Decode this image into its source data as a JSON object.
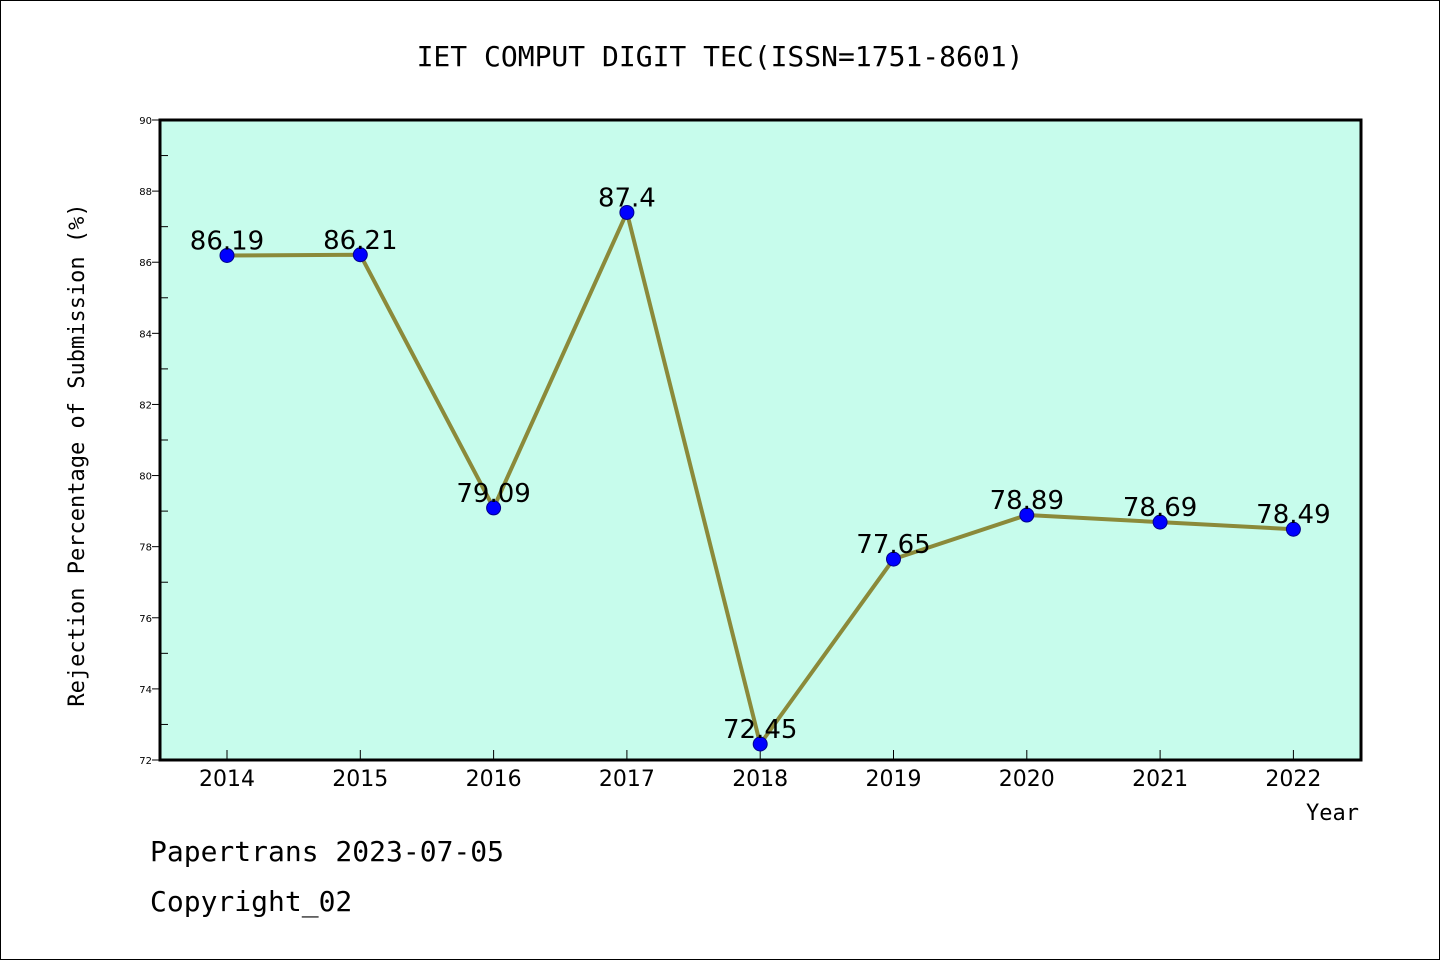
{
  "chart_data": {
    "type": "line",
    "title": "IET COMPUT DIGIT TEC(ISSN=1751-8601)",
    "xlabel": "Year",
    "ylabel": "Rejection Percentage of Submission (%)",
    "categories": [
      "2014",
      "2015",
      "2016",
      "2017",
      "2018",
      "2019",
      "2020",
      "2021",
      "2022"
    ],
    "series": [
      {
        "values": [
          86.19,
          86.21,
          79.09,
          87.4,
          72.45,
          77.65,
          78.89,
          78.69,
          78.49
        ]
      }
    ],
    "data_labels": [
      "86.19",
      "86.21",
      "79.09",
      "87.4",
      "72.45",
      "77.65",
      "78.89",
      "78.69",
      "78.49"
    ],
    "ylim": [
      72,
      90
    ],
    "y_ticks": [
      72,
      74,
      76,
      78,
      80,
      82,
      84,
      86,
      88,
      90
    ],
    "grid": false,
    "colors": {
      "plot_background": "#c7fcec",
      "line": "#8b8a3a",
      "marker": "#0000ff"
    }
  },
  "footer": {
    "line1": "Papertrans 2023-07-05",
    "line2": "Copyright_02"
  }
}
